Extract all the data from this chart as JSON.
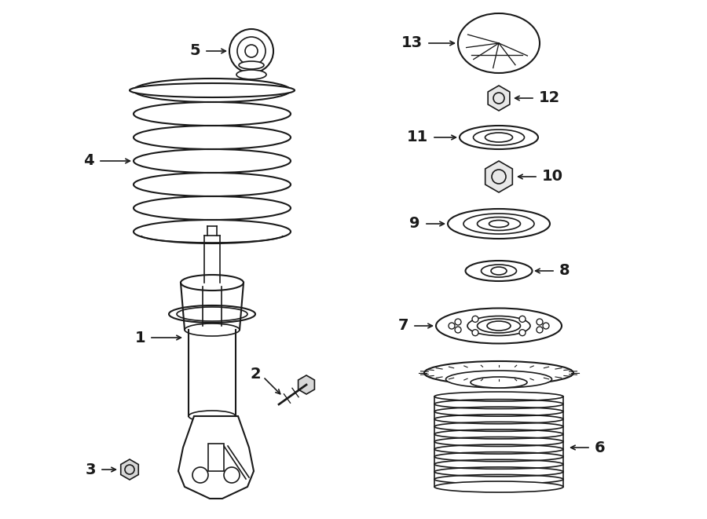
{
  "bg_color": "#ffffff",
  "line_color": "#1a1a1a",
  "fig_width": 9.0,
  "fig_height": 6.61,
  "dpi": 100,
  "xlim": [
    0,
    900
  ],
  "ylim": [
    0,
    661
  ]
}
